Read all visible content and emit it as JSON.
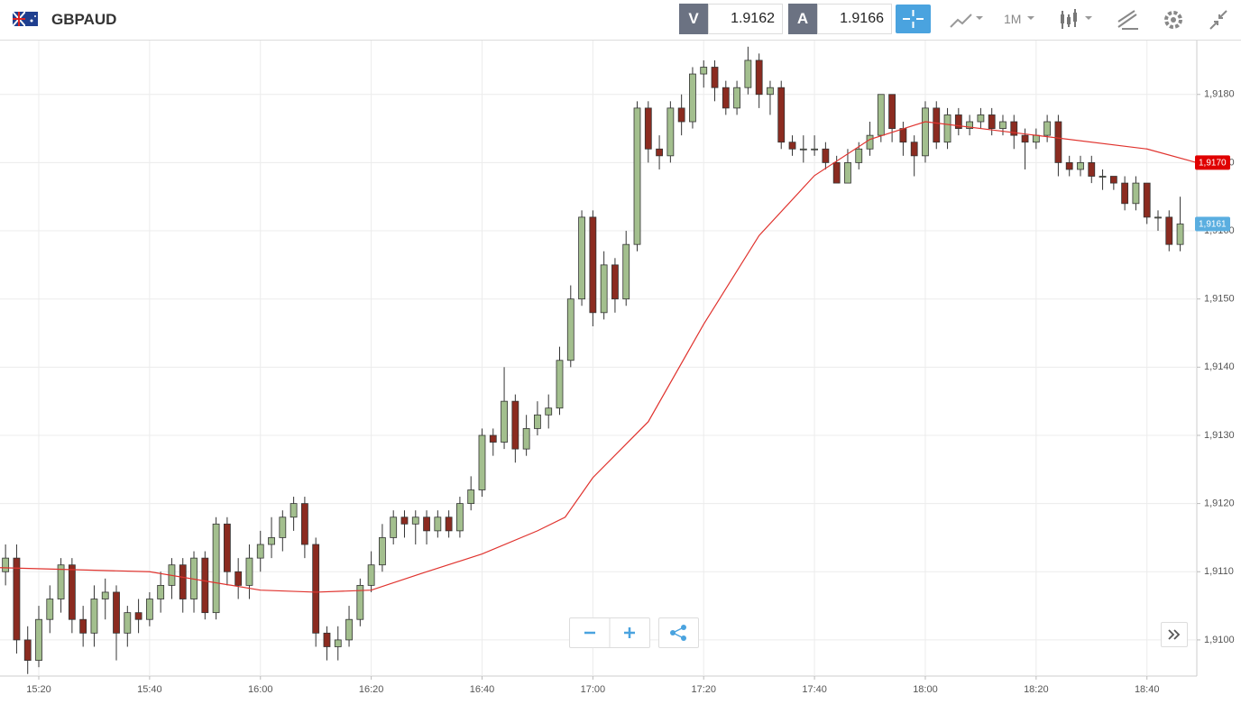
{
  "toolbar": {
    "symbol": "GBPAUD",
    "bid_label": "V",
    "bid": "1.9162",
    "ask_label": "A",
    "ask": "1.9166",
    "timeframe": "1M"
  },
  "chart_data": {
    "type": "candlestick",
    "x": [
      "15:14",
      "15:16",
      "15:18",
      "15:20",
      "15:22",
      "15:24",
      "15:26",
      "15:28",
      "15:30",
      "15:32",
      "15:34",
      "15:36",
      "15:38",
      "15:40",
      "15:42",
      "15:44",
      "15:46",
      "15:48",
      "15:50",
      "15:52",
      "15:54",
      "15:56",
      "15:58",
      "16:00",
      "16:02",
      "16:04",
      "16:06",
      "16:08",
      "16:10",
      "16:12",
      "16:14",
      "16:16",
      "16:18",
      "16:20",
      "16:22",
      "16:24",
      "16:26",
      "16:28",
      "16:30",
      "16:32",
      "16:34",
      "16:36",
      "16:38",
      "16:40",
      "16:42",
      "16:44",
      "16:46",
      "16:48",
      "16:50",
      "16:52",
      "16:54",
      "16:56",
      "16:58",
      "17:00",
      "17:02",
      "17:04",
      "17:06",
      "17:08",
      "17:10",
      "17:12",
      "17:14",
      "17:16",
      "17:18",
      "17:20",
      "17:22",
      "17:24",
      "17:26",
      "17:28",
      "17:30",
      "17:32",
      "17:34",
      "17:36",
      "17:38",
      "17:40",
      "17:42",
      "17:44",
      "17:46",
      "17:48",
      "17:50",
      "17:52",
      "17:54",
      "17:56",
      "17:58",
      "18:00",
      "18:02",
      "18:04",
      "18:06",
      "18:08",
      "18:10",
      "18:12",
      "18:14",
      "18:16",
      "18:18",
      "18:20",
      "18:22",
      "18:24",
      "18:26",
      "18:28",
      "18:30",
      "18:32",
      "18:34",
      "18:36",
      "18:38",
      "18:40",
      "18:42",
      "18:44",
      "18:46"
    ],
    "open": [
      1.911,
      1.9112,
      1.91,
      1.9097,
      1.9103,
      1.9106,
      1.9111,
      1.9103,
      1.9101,
      1.9106,
      1.9107,
      1.9101,
      1.9104,
      1.9103,
      1.9106,
      1.9108,
      1.9111,
      1.9106,
      1.9112,
      1.9104,
      1.9117,
      1.911,
      1.9108,
      1.9112,
      1.9114,
      1.9115,
      1.9118,
      1.912,
      1.9114,
      1.9101,
      1.9099,
      1.91,
      1.9103,
      1.9108,
      1.9111,
      1.9115,
      1.9118,
      1.9117,
      1.9118,
      1.9116,
      1.9118,
      1.9116,
      1.912,
      1.9122,
      1.913,
      1.9129,
      1.9135,
      1.9128,
      1.9131,
      1.9133,
      1.9134,
      1.9141,
      1.915,
      1.9162,
      1.9148,
      1.9155,
      1.915,
      1.9158,
      1.9178,
      1.9172,
      1.9171,
      1.9178,
      1.9176,
      1.9183,
      1.9184,
      1.9181,
      1.9178,
      1.9181,
      1.9185,
      1.918,
      1.9181,
      1.9173,
      1.9172,
      1.9172,
      1.9172,
      1.917,
      1.9167,
      1.917,
      1.9172,
      1.9174,
      1.918,
      1.9175,
      1.9173,
      1.9171,
      1.9178,
      1.9173,
      1.9177,
      1.9175,
      1.9176,
      1.9177,
      1.9175,
      1.9176,
      1.9174,
      1.9173,
      1.9174,
      1.9176,
      1.917,
      1.9169,
      1.917,
      1.9168,
      1.9168,
      1.9167,
      1.9164,
      1.9167,
      1.9162,
      1.9162,
      1.9158
    ],
    "high": [
      1.9114,
      1.9114,
      1.9102,
      1.9105,
      1.9108,
      1.9112,
      1.9112,
      1.9105,
      1.9108,
      1.9109,
      1.9108,
      1.9105,
      1.9106,
      1.9107,
      1.911,
      1.9112,
      1.9112,
      1.9113,
      1.9113,
      1.9118,
      1.9118,
      1.9112,
      1.9114,
      1.9116,
      1.9118,
      1.9119,
      1.9121,
      1.9121,
      1.9115,
      1.9102,
      1.9102,
      1.9105,
      1.9109,
      1.9113,
      1.9117,
      1.9119,
      1.9119,
      1.9119,
      1.9119,
      1.9119,
      1.9119,
      1.9121,
      1.9124,
      1.9131,
      1.9131,
      1.914,
      1.9136,
      1.9133,
      1.9135,
      1.9136,
      1.9143,
      1.9152,
      1.9163,
      1.9163,
      1.9157,
      1.9156,
      1.916,
      1.9179,
      1.9179,
      1.9174,
      1.9179,
      1.918,
      1.9184,
      1.9185,
      1.9185,
      1.9182,
      1.9182,
      1.9187,
      1.9186,
      1.9182,
      1.9182,
      1.9174,
      1.9174,
      1.9174,
      1.9173,
      1.9171,
      1.9172,
      1.9173,
      1.9176,
      1.918,
      1.918,
      1.9176,
      1.9174,
      1.9179,
      1.9179,
      1.9178,
      1.9178,
      1.9177,
      1.9178,
      1.9178,
      1.9177,
      1.9177,
      1.9175,
      1.9175,
      1.9177,
      1.9177,
      1.9171,
      1.9171,
      1.9171,
      1.9169,
      1.9168,
      1.9168,
      1.9168,
      1.9167,
      1.9163,
      1.9163,
      1.9165
    ],
    "low": [
      1.9108,
      1.9098,
      1.9095,
      1.9096,
      1.9101,
      1.9104,
      1.9101,
      1.9099,
      1.9099,
      1.9103,
      1.9097,
      1.9099,
      1.9101,
      1.9102,
      1.9104,
      1.9106,
      1.9104,
      1.9104,
      1.9103,
      1.9103,
      1.9108,
      1.9106,
      1.9106,
      1.911,
      1.9112,
      1.9113,
      1.9116,
      1.9112,
      1.9099,
      1.9097,
      1.9097,
      1.9099,
      1.9102,
      1.9107,
      1.911,
      1.9114,
      1.9115,
      1.9114,
      1.9114,
      1.9115,
      1.9115,
      1.9115,
      1.9119,
      1.9121,
      1.9127,
      1.9128,
      1.9126,
      1.9127,
      1.913,
      1.9131,
      1.9133,
      1.914,
      1.9149,
      1.9146,
      1.9147,
      1.9148,
      1.9149,
      1.9157,
      1.917,
      1.9169,
      1.917,
      1.9174,
      1.9175,
      1.9181,
      1.9179,
      1.9177,
      1.9177,
      1.918,
      1.9178,
      1.9177,
      1.9172,
      1.9171,
      1.917,
      1.9171,
      1.9169,
      1.9167,
      1.9167,
      1.9169,
      1.9171,
      1.9173,
      1.9173,
      1.9171,
      1.9168,
      1.917,
      1.9172,
      1.9172,
      1.9174,
      1.9174,
      1.9175,
      1.9174,
      1.9174,
      1.9172,
      1.9169,
      1.9172,
      1.9173,
      1.9168,
      1.9168,
      1.9168,
      1.9167,
      1.9166,
      1.9166,
      1.9163,
      1.9163,
      1.9161,
      1.916,
      1.9157,
      1.9157
    ],
    "close": [
      1.9112,
      1.91,
      1.9097,
      1.9103,
      1.9106,
      1.9111,
      1.9103,
      1.9101,
      1.9106,
      1.9107,
      1.9101,
      1.9104,
      1.9103,
      1.9106,
      1.9108,
      1.9111,
      1.9106,
      1.9112,
      1.9104,
      1.9117,
      1.911,
      1.9108,
      1.9112,
      1.9114,
      1.9115,
      1.9118,
      1.912,
      1.9114,
      1.9101,
      1.9099,
      1.91,
      1.9103,
      1.9108,
      1.9111,
      1.9115,
      1.9118,
      1.9117,
      1.9118,
      1.9116,
      1.9118,
      1.9116,
      1.912,
      1.9122,
      1.913,
      1.9129,
      1.9135,
      1.9128,
      1.9131,
      1.9133,
      1.9134,
      1.9141,
      1.915,
      1.9162,
      1.9148,
      1.9155,
      1.915,
      1.9158,
      1.9178,
      1.9172,
      1.9171,
      1.9178,
      1.9176,
      1.9183,
      1.9184,
      1.9181,
      1.9178,
      1.9181,
      1.9185,
      1.918,
      1.9181,
      1.9173,
      1.9172,
      1.9172,
      1.9172,
      1.917,
      1.9167,
      1.917,
      1.9172,
      1.9174,
      1.918,
      1.9175,
      1.9173,
      1.9171,
      1.9178,
      1.9173,
      1.9177,
      1.9175,
      1.9176,
      1.9177,
      1.9175,
      1.9176,
      1.9174,
      1.9173,
      1.9174,
      1.9176,
      1.917,
      1.9169,
      1.917,
      1.9168,
      1.9168,
      1.9167,
      1.9164,
      1.9167,
      1.9162,
      1.9162,
      1.9158,
      1.9161
    ],
    "up_color": "#a3bf8e",
    "down_color": "#8b2b20",
    "ma": {
      "color": "#e0332e",
      "x": [
        "15:13",
        "15:40",
        "16:00",
        "16:10",
        "16:20",
        "16:30",
        "16:40",
        "16:50",
        "16:55",
        "17:00",
        "17:10",
        "17:20",
        "17:30",
        "17:40",
        "17:50",
        "18:00",
        "18:20",
        "18:40",
        "18:49"
      ],
      "values": [
        1.91106,
        1.911,
        1.91073,
        1.9107,
        1.91073,
        1.911,
        1.91126,
        1.9116,
        1.9118,
        1.91238,
        1.9132,
        1.91463,
        1.91593,
        1.91681,
        1.91734,
        1.9176,
        1.9174,
        1.9172,
        1.917
      ]
    },
    "xlim": [
      "15:13",
      "18:49"
    ],
    "xticks": [
      "15:20",
      "15:40",
      "16:00",
      "16:20",
      "16:40",
      "17:00",
      "17:20",
      "17:40",
      "18:00",
      "18:20",
      "18:40"
    ],
    "ylim": [
      1.90947,
      1.91879
    ],
    "yticks": [
      {
        "value": 1.91,
        "label": "1,9100"
      },
      {
        "value": 1.911,
        "label": "1,9110"
      },
      {
        "value": 1.912,
        "label": "1,9120"
      },
      {
        "value": 1.913,
        "label": "1,9130"
      },
      {
        "value": 1.914,
        "label": "1,9140"
      },
      {
        "value": 1.915,
        "label": "1,9150"
      },
      {
        "value": 1.916,
        "label": "1,9160"
      },
      {
        "value": 1.917,
        "label": "1,9170"
      },
      {
        "value": 1.918,
        "label": "1,9180"
      }
    ],
    "price_tags": [
      {
        "value": 1.917,
        "label": "1,9170",
        "color": "#e00000"
      },
      {
        "value": 1.9161,
        "label": "1,9161",
        "color": "#5aaee0"
      }
    ],
    "grid": true
  }
}
